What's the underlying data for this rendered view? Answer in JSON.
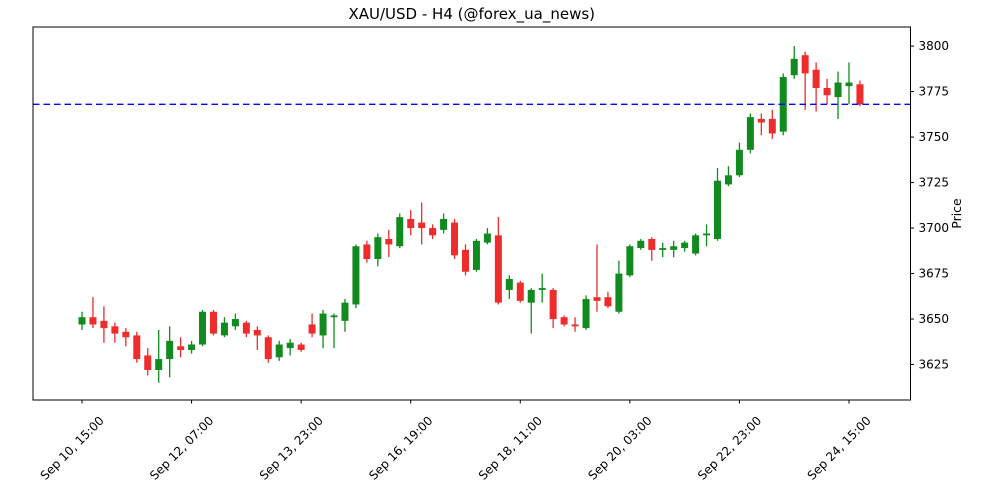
{
  "title": "XAU/USD - H4 (@forex_ua_news)",
  "chart_data": {
    "type": "candlestick",
    "title": "XAU/USD - H4 (@forex_ua_news)",
    "symbol": "XAU/USD",
    "timeframe": "H4",
    "source_handle": "@forex_ua_news",
    "ylabel": "Price",
    "ylim": [
      3605.5,
      3810.5
    ],
    "yticks": [
      3800,
      3775,
      3750,
      3725,
      3700,
      3675,
      3650,
      3625
    ],
    "xtick_labels": [
      "Sep 10, 15:00",
      "Sep 12, 07:00",
      "Sep 13, 23:00",
      "Sep 16, 19:00",
      "Sep 18, 11:00",
      "Sep 20, 03:00",
      "Sep 22, 23:00",
      "Sep 24, 15:00"
    ],
    "xtick_candle_indices": [
      0,
      10,
      20,
      30,
      40,
      50,
      60,
      70
    ],
    "grid": false,
    "legend": null,
    "hline": {
      "price": 3768,
      "style": "dashed",
      "color": "#0000ff"
    },
    "colors": {
      "up": "#118a1f",
      "down": "#ee2c2c",
      "axes": "#000000",
      "background": "#ffffff"
    },
    "candles_format": "[open, high, low, close]",
    "candles": [
      [
        3647,
        3654,
        3644,
        3651
      ],
      [
        3651,
        3662,
        3645,
        3647
      ],
      [
        3649,
        3657,
        3637,
        3645
      ],
      [
        3646,
        3648,
        3637,
        3642
      ],
      [
        3643,
        3645,
        3635,
        3640
      ],
      [
        3641,
        3643,
        3626,
        3628
      ],
      [
        3630,
        3634,
        3619,
        3622
      ],
      [
        3622,
        3644,
        3615,
        3628
      ],
      [
        3628,
        3646,
        3618,
        3638
      ],
      [
        3635,
        3640,
        3629,
        3633
      ],
      [
        3633,
        3638,
        3631,
        3636
      ],
      [
        3636,
        3655,
        3635,
        3654
      ],
      [
        3654,
        3655,
        3641,
        3642
      ],
      [
        3641,
        3651,
        3640,
        3648
      ],
      [
        3646,
        3653,
        3644,
        3650
      ],
      [
        3648,
        3649,
        3640,
        3642
      ],
      [
        3644,
        3646,
        3633,
        3641
      ],
      [
        3640,
        3641,
        3626,
        3628
      ],
      [
        3629,
        3638,
        3627,
        3636
      ],
      [
        3634,
        3639,
        3630,
        3637
      ],
      [
        3636,
        3637,
        3632,
        3633
      ],
      [
        3647,
        3653,
        3640,
        3642
      ],
      [
        3641,
        3655,
        3634,
        3653
      ],
      [
        3651,
        3653,
        3634,
        3652
      ],
      [
        3649,
        3661,
        3643,
        3659
      ],
      [
        3658,
        3691,
        3656,
        3690
      ],
      [
        3691,
        3693,
        3681,
        3683
      ],
      [
        3683,
        3697,
        3679,
        3695
      ],
      [
        3694,
        3699,
        3684,
        3691
      ],
      [
        3690,
        3708,
        3689,
        3706
      ],
      [
        3705,
        3710,
        3696,
        3700
      ],
      [
        3703,
        3714,
        3691,
        3700
      ],
      [
        3700,
        3702,
        3694,
        3696
      ],
      [
        3699,
        3708,
        3697,
        3705
      ],
      [
        3703,
        3705,
        3683,
        3685
      ],
      [
        3688,
        3691,
        3674,
        3676
      ],
      [
        3677,
        3694,
        3676,
        3693
      ],
      [
        3692,
        3700,
        3691,
        3697
      ],
      [
        3696,
        3706,
        3658,
        3659
      ],
      [
        3666,
        3674,
        3661,
        3672
      ],
      [
        3670,
        3671,
        3659,
        3660
      ],
      [
        3659,
        3667,
        3642,
        3666
      ],
      [
        3666,
        3675,
        3659,
        3667
      ],
      [
        3666,
        3667,
        3645,
        3650
      ],
      [
        3651,
        3652,
        3646,
        3647
      ],
      [
        3647,
        3651,
        3643,
        3646
      ],
      [
        3645,
        3663,
        3644,
        3661
      ],
      [
        3662,
        3691,
        3654,
        3660
      ],
      [
        3662,
        3665,
        3656,
        3657
      ],
      [
        3654,
        3682,
        3653,
        3675
      ],
      [
        3674,
        3691,
        3673,
        3690
      ],
      [
        3689,
        3694,
        3688,
        3693
      ],
      [
        3694,
        3695,
        3682,
        3688
      ],
      [
        3688,
        3692,
        3684,
        3689
      ],
      [
        3688,
        3693,
        3684,
        3690
      ],
      [
        3689,
        3693,
        3687,
        3692
      ],
      [
        3686,
        3697,
        3685,
        3696
      ],
      [
        3696,
        3702,
        3690,
        3697
      ],
      [
        3694,
        3733,
        3693,
        3726
      ],
      [
        3724,
        3734,
        3723,
        3729
      ],
      [
        3729,
        3747,
        3728,
        3743
      ],
      [
        3743,
        3763,
        3741,
        3761
      ],
      [
        3760,
        3763,
        3751,
        3758
      ],
      [
        3760,
        3765,
        3749,
        3752
      ],
      [
        3753,
        3785,
        3751,
        3783
      ],
      [
        3784,
        3800,
        3782,
        3793
      ],
      [
        3795,
        3797,
        3765,
        3785
      ],
      [
        3787,
        3791,
        3764,
        3777
      ],
      [
        3777,
        3782,
        3768,
        3773
      ],
      [
        3772,
        3786,
        3760,
        3780
      ],
      [
        3778,
        3791,
        3768,
        3780
      ],
      [
        3779,
        3781,
        3767,
        3768
      ]
    ]
  }
}
